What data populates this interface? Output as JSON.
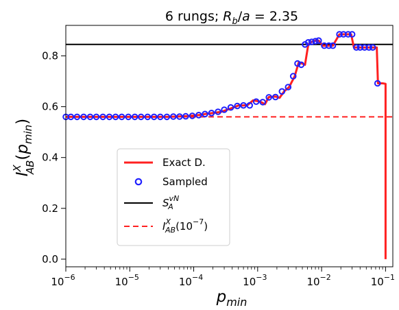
{
  "chart_data": {
    "type": "line",
    "title": "6 rungs; R_b/a = 2.35",
    "title_parts": {
      "prefix": "6 rungs; ",
      "r": "R",
      "r_sub": "b",
      "slash": "/",
      "a": "a",
      "eq": " = 2.35"
    },
    "xlabel": {
      "base": "p",
      "sub": "min"
    },
    "ylabel": {
      "base": "I",
      "sup": "X",
      "sub": "AB",
      "arg_open": "(",
      "arg_base": "p",
      "arg_sub": "min",
      "arg_close": ")"
    },
    "xscale": "log",
    "xlim": [
      1e-06,
      0.13
    ],
    "ylim": [
      -0.03,
      0.92
    ],
    "x_ticks": [
      {
        "value": 1e-06,
        "base": "10",
        "exp": "−6"
      },
      {
        "value": 1e-05,
        "base": "10",
        "exp": "−5"
      },
      {
        "value": 0.0001,
        "base": "10",
        "exp": "−4"
      },
      {
        "value": 0.001,
        "base": "10",
        "exp": "−3"
      },
      {
        "value": 0.01,
        "base": "10",
        "exp": "−2"
      },
      {
        "value": 0.1,
        "base": "10",
        "exp": "−1"
      }
    ],
    "y_ticks": [
      {
        "value": 0.0,
        "label": "0.0"
      },
      {
        "value": 0.2,
        "label": "0.2"
      },
      {
        "value": 0.4,
        "label": "0.4"
      },
      {
        "value": 0.6,
        "label": "0.6"
      },
      {
        "value": 0.8,
        "label": "0.8"
      }
    ],
    "grid": false,
    "legend_position": "lower-left",
    "legend": [
      {
        "kind": "line",
        "label": "Exact D."
      },
      {
        "kind": "marker",
        "label": "Sampled"
      },
      {
        "kind": "hline",
        "base": "S",
        "sup": "vN",
        "sub": "A"
      },
      {
        "kind": "dashed",
        "base": "I",
        "sup": "X",
        "sub": "AB",
        "arg": "(10",
        "arg_exp": "−7",
        "close": ")"
      }
    ],
    "colors": {
      "exact": "#ff2020",
      "sampled": "#1f1fff",
      "svn": "#000000",
      "ref": "#ff2020"
    },
    "series": [
      {
        "style": "solid",
        "x": [
          1e-06,
          1e-05,
          4e-05,
          8e-05,
          0.00012,
          0.00015,
          0.0002,
          0.00027,
          0.00035,
          0.00045,
          0.0005,
          0.0006,
          0.0007,
          0.00085,
          0.0011,
          0.0013,
          0.0015,
          0.0019,
          0.0022,
          0.0026,
          0.0031,
          0.0038,
          0.0044,
          0.0055,
          0.0062,
          0.007,
          0.008,
          0.009,
          0.0105,
          0.013,
          0.015,
          0.019,
          0.022,
          0.026,
          0.029,
          0.032,
          0.038,
          0.05,
          0.06,
          0.068,
          0.073,
          0.076,
          0.09,
          0.1,
          0.1
        ],
        "y": [
          0.56,
          0.56,
          0.56,
          0.563,
          0.567,
          0.571,
          0.575,
          0.58,
          0.59,
          0.6,
          0.605,
          0.605,
          0.607,
          0.625,
          0.62,
          0.61,
          0.638,
          0.64,
          0.635,
          0.66,
          0.677,
          0.72,
          0.775,
          0.765,
          0.845,
          0.855,
          0.86,
          0.86,
          0.84,
          0.84,
          0.84,
          0.885,
          0.885,
          0.885,
          0.885,
          0.833,
          0.833,
          0.833,
          0.833,
          0.833,
          0.833,
          0.692,
          0.692,
          0.69,
          0.0
        ]
      },
      {
        "style": "markers",
        "x": [
          1e-06,
          1.2e-06,
          1.5e-06,
          1.9e-06,
          2.4e-06,
          3e-06,
          3.8e-06,
          4.8e-06,
          6e-06,
          7.5e-06,
          9.5e-06,
          1.2e-05,
          1.5e-05,
          1.9e-05,
          2.4e-05,
          3e-05,
          3.8e-05,
          4.8e-05,
          6e-05,
          7.5e-05,
          9.5e-05,
          0.00012,
          0.00015,
          0.00019,
          0.00024,
          0.0003,
          0.00038,
          0.00048,
          0.0006,
          0.00075,
          0.00095,
          0.0012,
          0.0015,
          0.0019,
          0.0024,
          0.003,
          0.0036,
          0.0042,
          0.0048,
          0.0055,
          0.0062,
          0.007,
          0.008,
          0.009,
          0.011,
          0.013,
          0.015,
          0.019,
          0.022,
          0.026,
          0.03,
          0.035,
          0.04,
          0.047,
          0.055,
          0.063,
          0.075
        ],
        "y": [
          0.56,
          0.56,
          0.56,
          0.56,
          0.56,
          0.56,
          0.56,
          0.56,
          0.56,
          0.56,
          0.56,
          0.56,
          0.56,
          0.56,
          0.56,
          0.56,
          0.56,
          0.561,
          0.561,
          0.562,
          0.564,
          0.567,
          0.571,
          0.575,
          0.58,
          0.588,
          0.597,
          0.603,
          0.605,
          0.605,
          0.62,
          0.618,
          0.637,
          0.638,
          0.66,
          0.677,
          0.72,
          0.77,
          0.765,
          0.845,
          0.853,
          0.855,
          0.858,
          0.86,
          0.84,
          0.84,
          0.84,
          0.885,
          0.885,
          0.885,
          0.885,
          0.833,
          0.833,
          0.833,
          0.833,
          0.833,
          0.692
        ]
      },
      {
        "style": "hline",
        "y": 0.845
      },
      {
        "style": "dashed",
        "y": 0.56
      }
    ]
  }
}
